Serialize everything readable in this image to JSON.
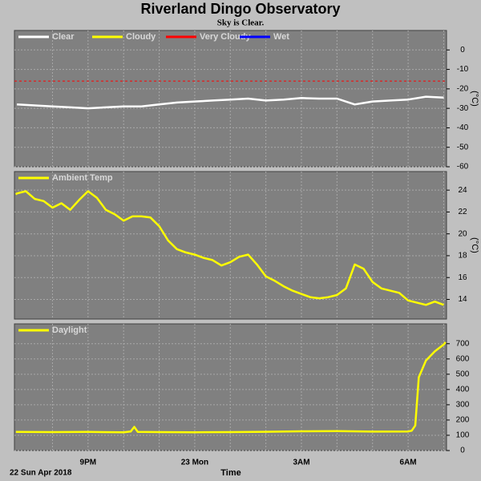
{
  "title": "Riverland Dingo Observatory",
  "subtitle": "Sky is Clear.",
  "x_axis": {
    "xlim": [
      18.93,
      31.08
    ],
    "xgrid": [
      20,
      21,
      22,
      23,
      24,
      25,
      26,
      27,
      28,
      29,
      30,
      31
    ],
    "xticks": [
      {
        "value": 21,
        "label": "9PM"
      },
      {
        "value": 24,
        "label": "23 Mon"
      },
      {
        "value": 27,
        "label": "3AM"
      },
      {
        "value": 30,
        "label": "6AM"
      }
    ],
    "xlabel": "Time",
    "date": "22 Sun Apr 2018"
  },
  "chart_data": [
    {
      "type": "line",
      "ylabel": "(°C)",
      "ylim": [
        -60,
        10
      ],
      "yticks": [
        0,
        -10,
        -20,
        -30,
        -40,
        -50,
        -60
      ],
      "grid": true,
      "series": [
        {
          "name": "Clear",
          "color": "#ffffff",
          "x": [
            19,
            19.5,
            20,
            20.5,
            21,
            21.5,
            22,
            22.5,
            23,
            23.5,
            24,
            24.5,
            25,
            25.5,
            26,
            26.5,
            27,
            27.5,
            28,
            28.5,
            29,
            29.5,
            30,
            30.5,
            31
          ],
          "values": [
            -28,
            -28.5,
            -29,
            -29.5,
            -30,
            -29.5,
            -29,
            -29,
            -28,
            -27,
            -26.5,
            -26,
            -25.5,
            -25,
            -26,
            -25.5,
            -24.7,
            -25,
            -25,
            -28,
            -26.5,
            -26,
            -25.5,
            -24,
            -24.5
          ]
        },
        {
          "name": "Cloudy",
          "color": "#ffff00"
        },
        {
          "name": "Very Cloudy",
          "color": "#ff0000",
          "threshold": -16
        },
        {
          "name": "Wet",
          "color": "#0000ff"
        }
      ]
    },
    {
      "type": "line",
      "ylabel": "(°C)",
      "ylim": [
        12.2,
        25.7
      ],
      "yticks": [
        24,
        22,
        20,
        18,
        16,
        14
      ],
      "grid": true,
      "series": [
        {
          "name": "Ambient Temp",
          "color": "#ffff00",
          "x": [
            18.97,
            19,
            19.25,
            19.5,
            19.75,
            20,
            20.25,
            20.5,
            20.75,
            21,
            21.25,
            21.5,
            21.75,
            22,
            22.25,
            22.5,
            22.75,
            23,
            23.25,
            23.5,
            23.75,
            24,
            24.25,
            24.5,
            24.75,
            25,
            25.25,
            25.5,
            25.75,
            26,
            26.25,
            26.5,
            26.75,
            27,
            27.25,
            27.5,
            27.75,
            28,
            28.25,
            28.5,
            28.75,
            29,
            29.25,
            29.5,
            29.75,
            30,
            30.25,
            30.5,
            30.75,
            31
          ],
          "values": [
            23.6,
            23.7,
            23.9,
            23.2,
            23.0,
            22.4,
            22.8,
            22.2,
            23.1,
            23.9,
            23.3,
            22.2,
            21.8,
            21.2,
            21.6,
            21.6,
            21.5,
            20.7,
            19.4,
            18.6,
            18.3,
            18.1,
            17.8,
            17.6,
            17.1,
            17.4,
            17.9,
            18.1,
            17.2,
            16.1,
            15.7,
            15.2,
            14.8,
            14.5,
            14.2,
            14.1,
            14.2,
            14.4,
            15.0,
            17.2,
            16.8,
            15.6,
            15.0,
            14.8,
            14.6,
            13.9,
            13.7,
            13.5,
            13.8,
            13.5
          ]
        }
      ]
    },
    {
      "type": "line",
      "ylim": [
        0,
        830
      ],
      "yticks": [
        700,
        600,
        500,
        400,
        300,
        200,
        100,
        0
      ],
      "grid": true,
      "series": [
        {
          "name": "Daylight",
          "color": "#ffff00",
          "x": [
            18.97,
            20,
            21,
            22,
            22.2,
            22.3,
            22.4,
            23,
            24,
            25,
            26,
            27,
            28,
            29,
            30,
            30.1,
            30.2,
            30.3,
            30.5,
            30.75,
            31,
            31.05
          ],
          "values": [
            122,
            121,
            122,
            120,
            125,
            155,
            122,
            121,
            120,
            121,
            123,
            126,
            127,
            124,
            125,
            130,
            164,
            480,
            590,
            650,
            695,
            710
          ]
        }
      ]
    }
  ]
}
